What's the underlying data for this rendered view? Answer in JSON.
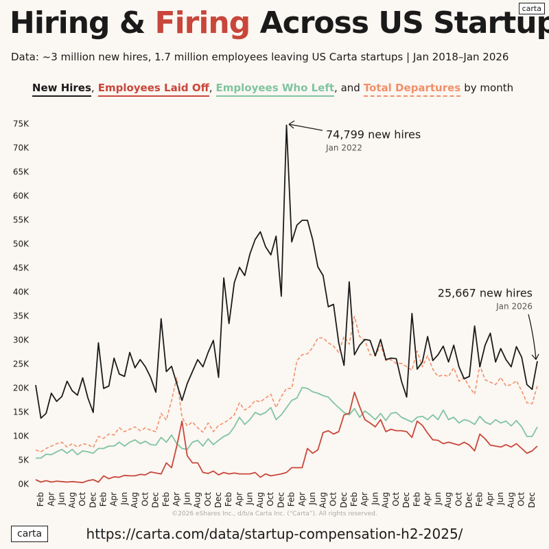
{
  "brand": "carta",
  "title": "Hiring & Firing Across US Startups",
  "title_highlight": "Firing",
  "subtitle": "Data: ~3 million new hires, 1.7 million employees leaving US Carta startups | Jan 2018–Jan 2026",
  "legend_connectors": [
    ",",
    ",",
    ", and",
    "by month"
  ],
  "footer_copyright": "©2026 eShares Inc., d/b/a Carta Inc. (“Carta”). All rights reserved.",
  "footer_url": "https://carta.com/data/startup-compensation-h2-2025/",
  "chart_data": {
    "type": "line",
    "grid": false,
    "annotations": [
      {
        "text": "74,799 new hires",
        "sub": "Jan 2022"
      },
      {
        "text": "25,667 new hires",
        "sub": "Jan 2026"
      }
    ],
    "categories": [
      null,
      "Feb",
      null,
      "Apr",
      null,
      "Jun",
      null,
      "Aug",
      null,
      "Oct",
      null,
      "Dec",
      null,
      "Feb",
      null,
      "Apr",
      null,
      "Jun",
      null,
      "Aug",
      null,
      "Oct",
      null,
      "Dec",
      null,
      "Feb",
      null,
      "Apr",
      null,
      "Jun",
      null,
      "Aug",
      null,
      "Oct",
      null,
      "Dec",
      null,
      "Feb",
      null,
      "Apr",
      null,
      "Jun",
      null,
      "Aug",
      null,
      "Oct",
      null,
      "Dec",
      null,
      "Feb",
      null,
      "Apr",
      null,
      "Jun",
      null,
      "Aug",
      null,
      "Oct",
      null,
      "Dec",
      null,
      "Feb",
      null,
      "Apr",
      null,
      "Jun",
      null,
      "Aug",
      null,
      "Oct",
      null,
      "Dec",
      null,
      "Feb",
      null,
      "Apr",
      null,
      "Jun",
      null,
      "Aug",
      null,
      "Oct",
      null,
      "Dec",
      null,
      "Feb",
      null,
      "Apr",
      null,
      "Jun",
      null,
      "Aug",
      null,
      "Oct",
      null,
      "Dec",
      null
    ],
    "ylim": [
      -1,
      78
    ],
    "yticks": [
      {
        "value": 0,
        "label": "0K"
      },
      {
        "value": 5,
        "label": "5K"
      },
      {
        "value": 10,
        "label": "10K"
      },
      {
        "value": 15,
        "label": "15K"
      },
      {
        "value": 20,
        "label": "20K"
      },
      {
        "value": 25,
        "label": "25K"
      },
      {
        "value": 30,
        "label": "30K"
      },
      {
        "value": 35,
        "label": "35K"
      },
      {
        "value": 40,
        "label": "40K"
      },
      {
        "value": 45,
        "label": "45K"
      },
      {
        "value": 50,
        "label": "50K"
      },
      {
        "value": 55,
        "label": "55K"
      },
      {
        "value": 60,
        "label": "60K"
      },
      {
        "value": 65,
        "label": "65K"
      },
      {
        "value": 70,
        "label": "70K"
      },
      {
        "value": 75,
        "label": "75K"
      }
    ],
    "series": [
      {
        "name": "New Hires",
        "color": "#1a1a1a",
        "dashed": false,
        "values": [
          20.7,
          13.8,
          14.8,
          19,
          17.3,
          18.3,
          21.5,
          19.5,
          18.6,
          22.2,
          18,
          15,
          29.5,
          20,
          20.5,
          26.3,
          23,
          22.5,
          27.5,
          24.3,
          26,
          24.5,
          22.3,
          19.2,
          34.5,
          23.5,
          24.6,
          21,
          17.5,
          21,
          23.5,
          26,
          24.5,
          27.5,
          30,
          22.3,
          43,
          33.5,
          42,
          45.2,
          43.5,
          48,
          51,
          52.6,
          49.5,
          47.8,
          51.7,
          39.2,
          74.799,
          50.5,
          54,
          55,
          55,
          51,
          45.3,
          43.5,
          37,
          37.5,
          29.5,
          24.8,
          42.2,
          27,
          29,
          30.2,
          30,
          26.8,
          30.2,
          26,
          26.3,
          26.2,
          21.5,
          18.2,
          35.6,
          24,
          25.5,
          30.8,
          25.8,
          27,
          28.8,
          25.5,
          29,
          24.5,
          22,
          22.5,
          33,
          24.5,
          29,
          31.5,
          25.5,
          28.3,
          26,
          24.5,
          28.7,
          26.5,
          20.8,
          19.8,
          25.667
        ]
      },
      {
        "name": "Employees Laid Off",
        "color": "#c8463a",
        "dashed": false,
        "values": [
          1,
          0.5,
          0.8,
          0.5,
          0.7,
          0.6,
          0.5,
          0.6,
          0.5,
          0.4,
          0.8,
          1,
          0.5,
          1.8,
          1.2,
          1.6,
          1.5,
          1.9,
          1.8,
          1.8,
          2.1,
          2,
          2.6,
          2.4,
          2.2,
          4.5,
          3.5,
          8,
          13.2,
          6,
          4.5,
          4.5,
          2.5,
          2.3,
          2.8,
          2,
          2.5,
          2.2,
          2.4,
          2.2,
          2.2,
          2.2,
          2.5,
          1.5,
          2.2,
          1.8,
          2,
          2.2,
          2.5,
          3.5,
          3.5,
          3.5,
          7.5,
          6.5,
          7.2,
          10.8,
          11.2,
          10.5,
          11,
          14.5,
          14.8,
          19.2,
          16.2,
          13.5,
          12.8,
          12,
          13.5,
          11,
          11.5,
          11.2,
          11.2,
          11,
          9.8,
          13.2,
          12.3,
          10.7,
          9.3,
          9.2,
          8.5,
          8.8,
          8.5,
          8.2,
          8.8,
          8.2,
          7,
          10.5,
          9.5,
          8.2,
          8,
          7.8,
          8.3,
          7.8,
          8.5,
          7.5,
          6.5,
          7,
          8
        ]
      },
      {
        "name": "Employees Who Left",
        "color": "#7fc4a0",
        "dashed": false,
        "values": [
          5.5,
          5.5,
          6.3,
          6.2,
          6.8,
          7.3,
          6.5,
          7.3,
          6.2,
          7,
          6.8,
          6.5,
          7.5,
          7.5,
          8,
          8,
          8.8,
          8,
          8.8,
          9.3,
          8.5,
          9,
          8.3,
          8.2,
          9.8,
          8.8,
          10.3,
          8.5,
          7.5,
          7.3,
          8.8,
          9.2,
          8,
          9.5,
          8.3,
          9.2,
          10,
          10.5,
          12,
          14,
          12.5,
          13.5,
          15,
          14.5,
          15,
          16,
          13.5,
          14.5,
          16,
          17.5,
          18,
          20.2,
          20,
          19.3,
          19,
          18.5,
          18.2,
          17,
          16,
          15,
          14.5,
          15.8,
          14,
          15.3,
          14.5,
          13.5,
          14.8,
          13.3,
          14.8,
          15,
          14,
          13.5,
          13,
          14,
          14.2,
          13.5,
          14.5,
          13.5,
          15.5,
          13.5,
          14,
          12.8,
          13.5,
          13.2,
          12.5,
          14.2,
          13,
          12.5,
          13.5,
          12.8,
          13.2,
          12.2,
          13.3,
          12,
          10,
          10,
          12
        ]
      },
      {
        "name": "Total Departures",
        "color": "#f0906a",
        "dashed": true,
        "values": [
          7.2,
          6.8,
          7.5,
          8,
          8.5,
          8.8,
          7.8,
          8.5,
          7.8,
          8.5,
          8.3,
          7.7,
          10,
          9.6,
          10.5,
          10.3,
          11.8,
          11,
          11.5,
          12,
          11.2,
          11.8,
          11.3,
          11,
          14.8,
          13.4,
          17.5,
          22.2,
          14,
          12.2,
          13,
          11.8,
          10.9,
          12.8,
          11,
          12.3,
          12.8,
          13.5,
          14.5,
          17,
          15.5,
          16.2,
          17.5,
          17.2,
          18,
          18.8,
          16,
          18.3,
          20,
          20,
          25.8,
          27,
          27.2,
          28.5,
          30.5,
          30.5,
          29.5,
          28.8,
          27.5,
          30.8,
          29.2,
          35,
          30.8,
          30,
          27,
          26.8,
          29,
          25.8,
          26,
          25.2,
          25.2,
          24.5,
          23.8,
          27.8,
          24.5,
          26.8,
          24,
          22.5,
          22.8,
          22.5,
          24.3,
          21.5,
          22.2,
          20.3,
          18.8,
          24.8,
          21.8,
          21.3,
          20.8,
          22.3,
          20.5,
          20.8,
          21.6,
          19.5,
          17,
          16.8,
          20.5
        ]
      }
    ]
  }
}
